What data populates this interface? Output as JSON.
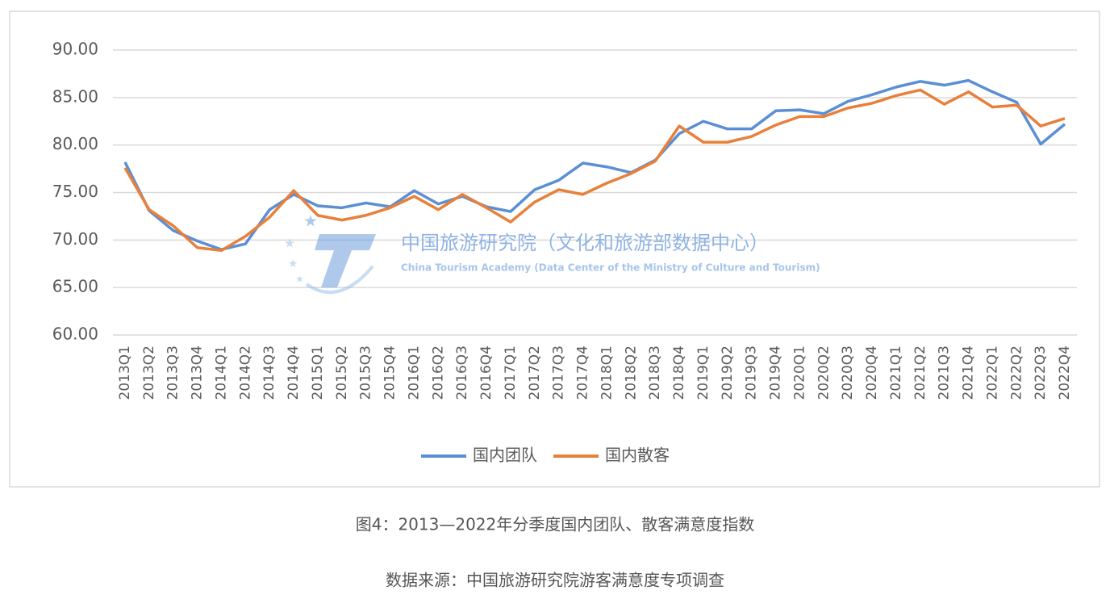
{
  "chart_data": {
    "type": "line",
    "categories": [
      "2013Q1",
      "2013Q2",
      "2013Q3",
      "2013Q4",
      "2014Q1",
      "2014Q2",
      "2014Q3",
      "2014Q4",
      "2015Q1",
      "2015Q2",
      "2015Q3",
      "2015Q4",
      "2016Q1",
      "2016Q2",
      "2016Q3",
      "2016Q4",
      "2017Q1",
      "2017Q2",
      "2017Q3",
      "2017Q4",
      "2018Q1",
      "2018Q2",
      "2018Q3",
      "2018Q4",
      "2019Q1",
      "2019Q2",
      "2019Q3",
      "2019Q4",
      "2020Q1",
      "2020Q2",
      "2020Q3",
      "2020Q4",
      "2021Q1",
      "2021Q2",
      "2021Q3",
      "2021Q4",
      "2022Q1",
      "2022Q2",
      "2022Q3",
      "2022Q4"
    ],
    "series": [
      {
        "name": "国内团队",
        "color": "#5b8fd4",
        "values": [
          78.2,
          73.1,
          71.0,
          69.9,
          69.0,
          69.6,
          73.2,
          74.8,
          73.6,
          73.4,
          73.9,
          73.5,
          75.2,
          73.8,
          74.6,
          73.5,
          73.0,
          75.3,
          76.3,
          78.1,
          77.7,
          77.1,
          78.4,
          81.2,
          82.5,
          81.7,
          81.7,
          83.6,
          83.7,
          83.3,
          84.6,
          85.3,
          86.1,
          86.7,
          86.3,
          86.8,
          85.6,
          84.5,
          80.1,
          82.2
        ]
      },
      {
        "name": "国内散客",
        "color": "#e8803a",
        "values": [
          77.6,
          73.2,
          71.5,
          69.2,
          68.9,
          70.4,
          72.4,
          75.2,
          72.6,
          72.1,
          72.6,
          73.4,
          74.6,
          73.2,
          74.8,
          73.4,
          71.9,
          74.0,
          75.3,
          74.8,
          76.0,
          77.0,
          78.3,
          82.0,
          80.3,
          80.3,
          80.9,
          82.1,
          83.0,
          83.0,
          83.9,
          84.4,
          85.2,
          85.8,
          84.3,
          85.6,
          84.0,
          84.2,
          82.0,
          82.8
        ]
      }
    ],
    "ylim": [
      60,
      90
    ],
    "yticks": [
      {
        "value": 60,
        "label": "60.00"
      },
      {
        "value": 65,
        "label": "65.00"
      },
      {
        "value": 70,
        "label": "70.00"
      },
      {
        "value": 75,
        "label": "75.00"
      },
      {
        "value": 80,
        "label": "80.00"
      },
      {
        "value": 85,
        "label": "85.00"
      },
      {
        "value": 90,
        "label": "90.00"
      }
    ],
    "grid": true,
    "legend": "bottom",
    "watermark": {
      "title": "中国旅游研究院（文化和旅游部数据中心）",
      "subtitle": "China Tourism Academy (Data Center of the Ministry of Culture and Tourism)"
    },
    "caption": "图4：2013—2022年分季度国内团队、散客满意度指数",
    "source": "数据来源：中国旅游研究院游客满意度专项调查"
  }
}
